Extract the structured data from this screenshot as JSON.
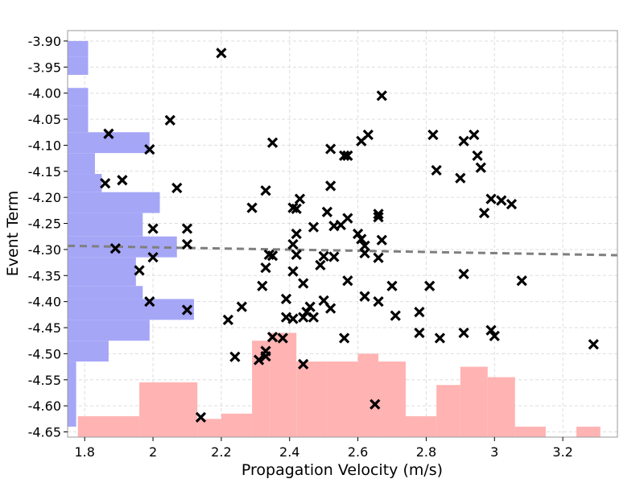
{
  "chart_data": {
    "type": "scatter",
    "title": "",
    "xlabel": "Propagation Velocity (m/s)",
    "ylabel": "Event Term",
    "xlim": [
      1.75,
      3.36
    ],
    "ylim": [
      -4.66,
      -3.88
    ],
    "x_ticks": [
      1.8,
      2.0,
      2.2,
      2.4,
      2.6,
      2.8,
      3.0,
      3.2
    ],
    "x_tick_labels": [
      "1.8",
      "2",
      "2.2",
      "2.4",
      "2.6",
      "2.8",
      "3",
      "3.2"
    ],
    "y_ticks": [
      -3.9,
      -3.95,
      -4.0,
      -4.05,
      -4.1,
      -4.15,
      -4.2,
      -4.25,
      -4.3,
      -4.35,
      -4.4,
      -4.45,
      -4.5,
      -4.55,
      -4.6,
      -4.65
    ],
    "y_tick_labels": [
      "-3.90",
      "-3.95",
      "-4.00",
      "-4.05",
      "-4.10",
      "-4.15",
      "-4.20",
      "-4.25",
      "-4.30",
      "-4.35",
      "-4.40",
      "-4.45",
      "-4.50",
      "-4.55",
      "-4.60",
      "-4.65"
    ],
    "grid": true,
    "colors": {
      "points": "#000000",
      "y_histogram": "#a6a6f7",
      "x_histogram": "#ffb3b3",
      "trend_line": "#7f7f7f"
    },
    "trend_line": {
      "x": [
        1.75,
        3.36
      ],
      "y": [
        -4.293,
        -4.311
      ]
    },
    "points": [
      [
        2.2,
        -3.923
      ],
      [
        2.67,
        -4.005
      ],
      [
        2.05,
        -4.052
      ],
      [
        1.87,
        -4.078
      ],
      [
        1.99,
        -4.108
      ],
      [
        2.35,
        -4.095
      ],
      [
        1.86,
        -4.173
      ],
      [
        1.91,
        -4.167
      ],
      [
        2.07,
        -4.182
      ],
      [
        2.33,
        -4.187
      ],
      [
        2.43,
        -4.203
      ],
      [
        2.41,
        -4.22
      ],
      [
        2.29,
        -4.22
      ],
      [
        2.42,
        -4.222
      ],
      [
        2.51,
        -4.228
      ],
      [
        2.52,
        -4.107
      ],
      [
        2.56,
        -4.12
      ],
      [
        2.57,
        -4.12
      ],
      [
        2.61,
        -4.092
      ],
      [
        2.63,
        -4.08
      ],
      [
        2.52,
        -4.178
      ],
      [
        2.66,
        -4.232
      ],
      [
        2.66,
        -4.238
      ],
      [
        2.57,
        -4.24
      ],
      [
        2.55,
        -4.253
      ],
      [
        2.53,
        -4.255
      ],
      [
        2.47,
        -4.257
      ],
      [
        2.42,
        -4.27
      ],
      [
        2.41,
        -4.29
      ],
      [
        2.42,
        -4.31
      ],
      [
        2.34,
        -4.31
      ],
      [
        2.35,
        -4.312
      ],
      [
        2.33,
        -4.335
      ],
      [
        2.32,
        -4.37
      ],
      [
        2.41,
        -4.342
      ],
      [
        2.44,
        -4.365
      ],
      [
        2.5,
        -4.313
      ],
      [
        2.53,
        -4.314
      ],
      [
        2.49,
        -4.33
      ],
      [
        2.6,
        -4.27
      ],
      [
        2.61,
        -4.28
      ],
      [
        2.62,
        -4.293
      ],
      [
        2.62,
        -4.307
      ],
      [
        2.67,
        -4.282
      ],
      [
        2.66,
        -4.316
      ],
      [
        2.57,
        -4.36
      ],
      [
        2.5,
        -4.398
      ],
      [
        2.52,
        -4.413
      ],
      [
        2.46,
        -4.41
      ],
      [
        2.45,
        -4.42
      ],
      [
        2.47,
        -4.43
      ],
      [
        2.44,
        -4.43
      ],
      [
        2.39,
        -4.395
      ],
      [
        2.39,
        -4.43
      ],
      [
        2.41,
        -4.433
      ],
      [
        2.62,
        -4.39
      ],
      [
        2.66,
        -4.4
      ],
      [
        2.7,
        -4.37
      ],
      [
        2.71,
        -4.427
      ],
      [
        2.56,
        -4.47
      ],
      [
        2.26,
        -4.41
      ],
      [
        2.22,
        -4.435
      ],
      [
        2.35,
        -4.468
      ],
      [
        2.38,
        -4.47
      ],
      [
        2.33,
        -4.495
      ],
      [
        2.33,
        -4.505
      ],
      [
        2.31,
        -4.512
      ],
      [
        2.24,
        -4.506
      ],
      [
        2.44,
        -4.52
      ],
      [
        2.65,
        -4.597
      ],
      [
        2.14,
        -4.622
      ],
      [
        1.89,
        -4.298
      ],
      [
        2.0,
        -4.26
      ],
      [
        2.1,
        -4.26
      ],
      [
        2.1,
        -4.29
      ],
      [
        2.0,
        -4.315
      ],
      [
        1.96,
        -4.34
      ],
      [
        1.99,
        -4.4
      ],
      [
        2.1,
        -4.416
      ],
      [
        2.82,
        -4.08
      ],
      [
        2.83,
        -4.148
      ],
      [
        2.91,
        -4.092
      ],
      [
        2.94,
        -4.08
      ],
      [
        2.95,
        -4.12
      ],
      [
        2.96,
        -4.143
      ],
      [
        2.9,
        -4.163
      ],
      [
        2.99,
        -4.203
      ],
      [
        3.02,
        -4.206
      ],
      [
        3.05,
        -4.213
      ],
      [
        2.97,
        -4.23
      ],
      [
        2.81,
        -4.37
      ],
      [
        2.78,
        -4.42
      ],
      [
        2.78,
        -4.46
      ],
      [
        2.84,
        -4.47
      ],
      [
        2.91,
        -4.347
      ],
      [
        2.91,
        -4.46
      ],
      [
        2.99,
        -4.455
      ],
      [
        3.0,
        -4.466
      ],
      [
        3.08,
        -4.36
      ],
      [
        3.29,
        -4.482
      ]
    ],
    "y_histogram": {
      "bins": [
        [
          -3.9,
          -3.93,
          0.06
        ],
        [
          -3.93,
          -3.965,
          0.06
        ],
        [
          -3.965,
          -3.99,
          0
        ],
        [
          -3.99,
          -4.025,
          0.06
        ],
        [
          -4.025,
          -4.075,
          0.06
        ],
        [
          -4.075,
          -4.115,
          0.24
        ],
        [
          -4.115,
          -4.155,
          0.08
        ],
        [
          -4.155,
          -4.19,
          0.1
        ],
        [
          -4.19,
          -4.23,
          0.27
        ],
        [
          -4.23,
          -4.275,
          0.22
        ],
        [
          -4.275,
          -4.315,
          0.32
        ],
        [
          -4.315,
          -4.37,
          0.2
        ],
        [
          -4.37,
          -4.395,
          0.22
        ],
        [
          -4.395,
          -4.435,
          0.37
        ],
        [
          -4.435,
          -4.475,
          0.24
        ],
        [
          -4.475,
          -4.515,
          0.12
        ],
        [
          -4.515,
          -4.64,
          0.025
        ]
      ]
    },
    "x_histogram": {
      "bins": [
        [
          1.78,
          1.96,
          0.04
        ],
        [
          1.96,
          2.13,
          0.105
        ],
        [
          2.13,
          2.2,
          0.035
        ],
        [
          2.2,
          2.29,
          0.045
        ],
        [
          2.29,
          2.34,
          0.185
        ],
        [
          2.34,
          2.42,
          0.2
        ],
        [
          2.42,
          2.51,
          0.145
        ],
        [
          2.51,
          2.6,
          0.145
        ],
        [
          2.6,
          2.66,
          0.16
        ],
        [
          2.66,
          2.74,
          0.145
        ],
        [
          2.74,
          2.83,
          0.04
        ],
        [
          2.83,
          2.9,
          0.1
        ],
        [
          2.9,
          2.98,
          0.135
        ],
        [
          2.98,
          3.06,
          0.115
        ],
        [
          3.06,
          3.15,
          0.02
        ],
        [
          3.15,
          3.24,
          0
        ],
        [
          3.24,
          3.31,
          0.02
        ]
      ]
    }
  }
}
